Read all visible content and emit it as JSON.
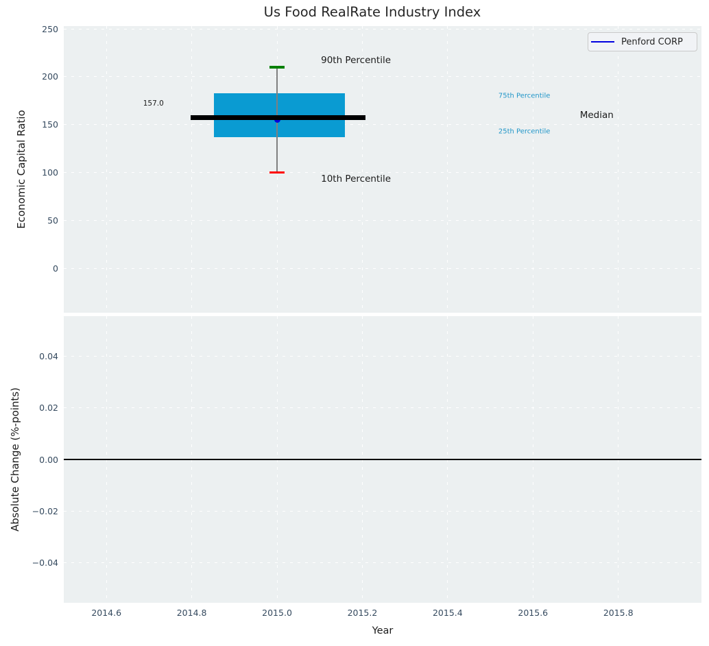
{
  "chart": {
    "title": "Us Food RealRate Industry Index",
    "xlabel": "Year",
    "top_ylabel": "Economic Capital Ratio",
    "bottom_ylabel": "Absolute Change (%-points)",
    "legend": {
      "label": "Penford CORP"
    }
  },
  "colors": {
    "axes_background": "#ecf0f1",
    "grid": "#ffffff",
    "tick_labels": "#34495e",
    "text": "#262626",
    "box_fill": "#0a9bd2",
    "median_line": "#000000",
    "whisker": "#7f7f7f",
    "cap_90th": "#008000",
    "cap_10th": "#ff0000",
    "company_marker": "#0000e0",
    "percentile_label": "#2196c8",
    "zero_line": "#000000",
    "legend_border": "#c9c9c9",
    "legend_bg": "#f1f3f6"
  },
  "chart_data": [
    {
      "type": "boxplot",
      "title": "Us Food RealRate Industry Index",
      "ylabel": "Economic Capital Ratio",
      "xlabel": "Year",
      "xlim": [
        2014.5,
        2015.995
      ],
      "ylim": [
        -46.5,
        253.0
      ],
      "xticks": [
        2014.6,
        2014.8,
        2015.0,
        2015.2,
        2015.4,
        2015.6,
        2015.8
      ],
      "xtick_labels": [
        "2014.6",
        "2014.8",
        "2015.0",
        "2015.2",
        "2015.4",
        "2015.6",
        "2015.8"
      ],
      "yticks": [
        0,
        50,
        100,
        150,
        200,
        250
      ],
      "ytick_labels": [
        "0",
        "50",
        "100",
        "150",
        "200",
        "250"
      ],
      "grid": true,
      "legend_position": "upper right",
      "box": {
        "x": 2015.0,
        "p10": 100,
        "p25": 137,
        "median": 157,
        "p75": 183,
        "p90": 210,
        "median_value_label": "157.0",
        "box_left": 2014.852,
        "box_right": 2015.159,
        "median_line_left": 2014.797,
        "median_line_right": 2015.207,
        "cap_halfwidth": 0.017
      },
      "series": [
        {
          "name": "Penford CORP",
          "x": [
            2015.0
          ],
          "y": [
            155
          ],
          "marker": "circle",
          "color": "#0000e0"
        }
      ],
      "annotations": [
        {
          "text": "90th Percentile",
          "x": 2015.103,
          "y": 217,
          "color": "#1a1a1a",
          "size": 13.5
        },
        {
          "text": "10th Percentile",
          "x": 2015.103,
          "y": 93,
          "color": "#1a1a1a",
          "size": 13.5
        },
        {
          "text": "75th Percentile",
          "x": 2015.519,
          "y": 180,
          "color": "#2196c8",
          "size": 10
        },
        {
          "text": "25th Percentile",
          "x": 2015.519,
          "y": 143,
          "color": "#2196c8",
          "size": 10
        },
        {
          "text": "Median",
          "x": 2015.71,
          "y": 160,
          "color": "#1a1a1a",
          "size": 13.5
        },
        {
          "text": "157.0",
          "x": 2014.686,
          "y": 172,
          "color": "#1a1a1a",
          "size": 10.5
        }
      ]
    },
    {
      "type": "line",
      "ylabel": "Absolute Change (%-points)",
      "xlabel": "Year",
      "xlim": [
        2014.5,
        2015.995
      ],
      "ylim": [
        -0.0554,
        0.0554
      ],
      "xticks": [
        2014.6,
        2014.8,
        2015.0,
        2015.2,
        2015.4,
        2015.6,
        2015.8
      ],
      "xtick_labels": [
        "2014.6",
        "2014.8",
        "2015.0",
        "2015.2",
        "2015.4",
        "2015.6",
        "2015.8"
      ],
      "yticks": [
        0.04,
        0.02,
        0.0,
        -0.02,
        -0.04
      ],
      "ytick_labels": [
        "0.04",
        "0.02",
        "0.00",
        "−0.02",
        "−0.04"
      ],
      "grid": true,
      "zero_line_y": 0.0,
      "series": []
    }
  ]
}
